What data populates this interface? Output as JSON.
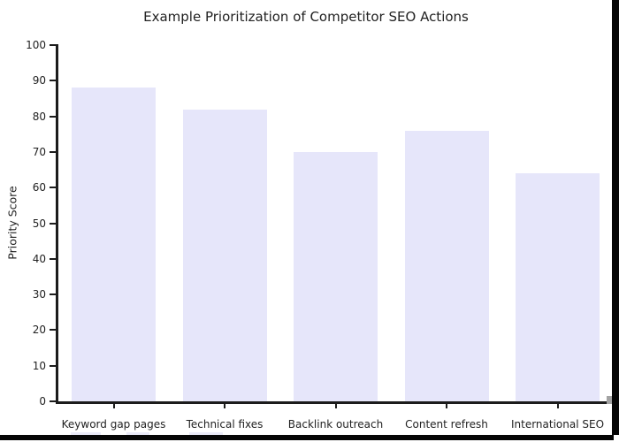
{
  "chart_data": {
    "type": "bar",
    "title": "Example Prioritization of Competitor SEO Actions",
    "categories": [
      "Keyword gap pages",
      "Technical fixes",
      "Backlink outreach",
      "Content refresh",
      "International SEO"
    ],
    "values": [
      88,
      82,
      70,
      76,
      64
    ],
    "xlabel": "",
    "ylabel": "Priority Score",
    "ylim": [
      0,
      100
    ],
    "yticks": [
      0,
      10,
      20,
      30,
      40,
      50,
      60,
      70,
      80,
      90,
      100
    ],
    "grid": false,
    "legend": null,
    "colors": {
      "bar": "#e6e6fa",
      "axis": "#1c1c1c",
      "text": "#222222",
      "background": "#ffffff"
    }
  }
}
